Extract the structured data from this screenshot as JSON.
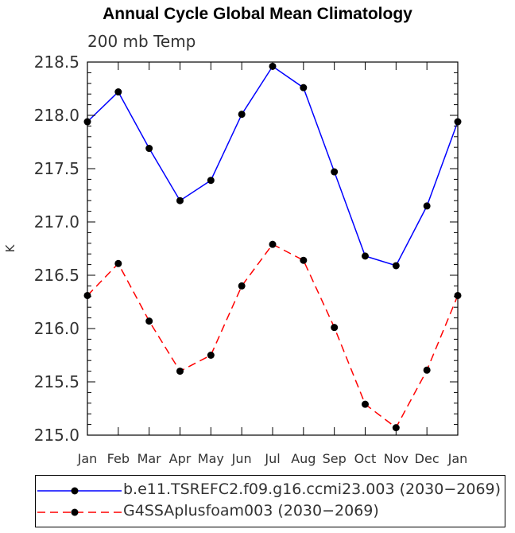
{
  "chart_data": {
    "type": "line",
    "title": "Annual Cycle Global Mean Climatology",
    "subtitle": "200 mb Temp",
    "ylabel": "K",
    "xlabel": "",
    "categories": [
      "Jan",
      "Feb",
      "Mar",
      "Apr",
      "May",
      "Jun",
      "Jul",
      "Aug",
      "Sep",
      "Oct",
      "Nov",
      "Dec",
      "Jan"
    ],
    "ylim": [
      215.0,
      218.5
    ],
    "yticks": [
      "215.0",
      "215.5",
      "216.0",
      "216.5",
      "217.0",
      "217.5",
      "218.0",
      "218.5"
    ],
    "series": [
      {
        "name": "b.e11.TSREFC2.f09.g16.ccmi23.003 (2030−2069)",
        "color": "#0000ff",
        "style": "solid",
        "values": [
          217.94,
          218.22,
          217.69,
          217.2,
          217.39,
          218.01,
          218.46,
          218.26,
          217.47,
          216.68,
          216.59,
          217.15,
          217.94
        ]
      },
      {
        "name": "G4SSAplusfoam003 (2030−2069)",
        "color": "#ff0000",
        "style": "dashed",
        "values": [
          216.31,
          216.61,
          216.07,
          215.6,
          215.75,
          216.4,
          216.79,
          216.64,
          216.01,
          215.29,
          215.07,
          215.61,
          216.31
        ]
      }
    ]
  }
}
